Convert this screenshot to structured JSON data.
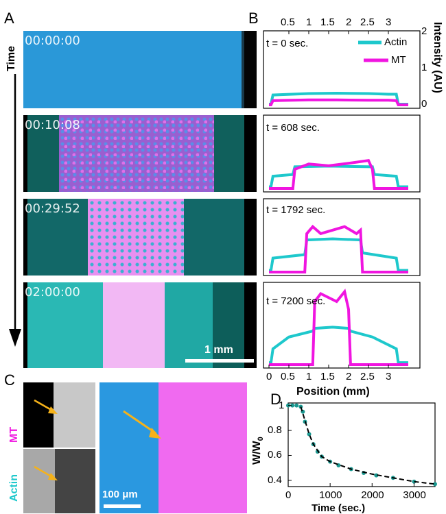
{
  "panels": {
    "A": "A",
    "B": "B",
    "C": "C",
    "D": "D"
  },
  "panel_a": {
    "time_axis_label": "Time",
    "timestamps": [
      "00:00:00",
      "00:10:08",
      "00:29:52",
      "02:00:00"
    ],
    "scalebar_label": "1 mm"
  },
  "panel_b": {
    "top_ticks": [
      "0.5",
      "1",
      "1.5",
      "2",
      "2.5",
      "3"
    ],
    "bottom_ticks": [
      "0",
      "0.5",
      "1",
      "1.5",
      "2",
      "2.5",
      "3"
    ],
    "right_ticks": [
      "2",
      "1",
      "0"
    ],
    "ylabel": "Intensity (AU)",
    "xlabel": "Position (mm)",
    "legend": [
      "Actin",
      "MT"
    ],
    "time_labels": [
      "t = 0 sec.",
      "t = 608 sec.",
      "t = 1792 sec.",
      "t = 7200 sec."
    ]
  },
  "panel_c": {
    "channel_labels": [
      "MT",
      "Actin"
    ],
    "scalebar_label": "100 μm"
  },
  "panel_d": {
    "ylabel_main": "W/W",
    "ylabel_sub": "0",
    "xlabel": "Time (sec.)",
    "yticks": [
      "1",
      "0.8",
      "0.6",
      "0.4"
    ],
    "xticks": [
      "0",
      "1000",
      "2000",
      "3000"
    ]
  },
  "colors": {
    "actin": "#1ec8cc",
    "mt": "#f015e0",
    "arrow": "#f5b21a"
  },
  "chart_data": [
    {
      "type": "line",
      "title": "t = 0 sec.",
      "xlabel": "Position (mm)",
      "ylabel": "Intensity (AU)",
      "xlim": [
        0,
        3.5
      ],
      "ylim": [
        0,
        2
      ],
      "series": [
        {
          "name": "Actin",
          "x": [
            0,
            0.05,
            0.1,
            1.0,
            1.7,
            2.5,
            3.0,
            3.2,
            3.25,
            3.5
          ],
          "y": [
            0.02,
            0.02,
            0.28,
            0.32,
            0.33,
            0.32,
            0.3,
            0.3,
            0.02,
            0.02
          ]
        },
        {
          "name": "MT",
          "x": [
            0,
            0.05,
            0.1,
            1.0,
            1.7,
            2.5,
            3.0,
            3.2,
            3.25,
            3.5
          ],
          "y": [
            0.0,
            0.0,
            0.12,
            0.14,
            0.14,
            0.13,
            0.13,
            0.12,
            0.0,
            0.0
          ]
        }
      ]
    },
    {
      "type": "line",
      "title": "t = 608 sec.",
      "xlabel": "Position (mm)",
      "ylabel": "Intensity (AU)",
      "xlim": [
        0,
        3.5
      ],
      "ylim": [
        0,
        2
      ],
      "series": [
        {
          "name": "Actin",
          "x": [
            0,
            0.05,
            0.1,
            0.6,
            0.65,
            1.5,
            2.6,
            2.65,
            3.2,
            3.25,
            3.5
          ],
          "y": [
            0.05,
            0.05,
            0.35,
            0.4,
            0.62,
            0.64,
            0.62,
            0.4,
            0.35,
            0.05,
            0.05
          ]
        },
        {
          "name": "MT",
          "x": [
            0,
            0.6,
            0.65,
            1.0,
            1.5,
            2.0,
            2.5,
            2.6,
            2.65,
            3.5
          ],
          "y": [
            0.0,
            0.0,
            0.55,
            0.7,
            0.65,
            0.72,
            0.8,
            0.55,
            0.0,
            0.0
          ]
        }
      ]
    },
    {
      "type": "line",
      "title": "t = 1792 sec.",
      "xlabel": "Position (mm)",
      "ylabel": "Intensity (AU)",
      "xlim": [
        0,
        3.5
      ],
      "ylim": [
        0,
        2
      ],
      "series": [
        {
          "name": "Actin",
          "x": [
            0,
            0.05,
            0.1,
            0.9,
            0.95,
            1.6,
            2.3,
            2.35,
            3.2,
            3.25,
            3.5
          ],
          "y": [
            0.05,
            0.05,
            0.4,
            0.5,
            0.92,
            0.95,
            0.92,
            0.55,
            0.4,
            0.05,
            0.05
          ]
        },
        {
          "name": "MT",
          "x": [
            0,
            0.9,
            0.95,
            1.1,
            1.3,
            1.6,
            1.9,
            2.2,
            2.3,
            2.35,
            3.5
          ],
          "y": [
            0.0,
            0.0,
            1.1,
            1.3,
            1.1,
            1.2,
            1.3,
            1.1,
            1.2,
            0.0,
            0.0
          ]
        }
      ]
    },
    {
      "type": "line",
      "title": "t = 7200 sec.",
      "xlabel": "Position (mm)",
      "ylabel": "Intensity (AU)",
      "xlim": [
        0,
        3.5
      ],
      "ylim": [
        0,
        2
      ],
      "series": [
        {
          "name": "Actin",
          "x": [
            0,
            0.05,
            0.1,
            0.5,
            1.1,
            1.15,
            1.6,
            2.0,
            2.05,
            2.6,
            3.2,
            3.25,
            3.5
          ],
          "y": [
            0.05,
            0.05,
            0.4,
            0.7,
            0.85,
            0.92,
            0.95,
            0.92,
            0.85,
            0.7,
            0.4,
            0.05,
            0.05
          ]
        },
        {
          "name": "MT",
          "x": [
            0,
            1.1,
            1.15,
            1.3,
            1.5,
            1.7,
            1.9,
            2.0,
            2.05,
            3.5
          ],
          "y": [
            0.0,
            0.0,
            1.6,
            1.8,
            1.7,
            1.6,
            1.85,
            1.4,
            0.0,
            0.0
          ]
        }
      ]
    },
    {
      "type": "scatter",
      "xlabel": "Time (sec.)",
      "ylabel": "W/W0",
      "xlim": [
        0,
        3500
      ],
      "ylim": [
        0.35,
        1.02
      ],
      "series": [
        {
          "name": "data",
          "x": [
            0,
            100,
            200,
            300,
            350,
            400,
            500,
            600,
            700,
            800,
            1000,
            1200,
            1500,
            1800,
            2100,
            2500,
            3000,
            3500
          ],
          "y": [
            1.0,
            1.0,
            1.0,
            0.99,
            0.95,
            0.87,
            0.77,
            0.69,
            0.63,
            0.59,
            0.55,
            0.52,
            0.49,
            0.46,
            0.44,
            0.42,
            0.39,
            0.37
          ]
        },
        {
          "name": "fit",
          "x": [
            300,
            400,
            500,
            600,
            800,
            1000,
            1500,
            2000,
            2500,
            3000,
            3500
          ],
          "y": [
            0.99,
            0.88,
            0.77,
            0.69,
            0.59,
            0.55,
            0.49,
            0.45,
            0.42,
            0.39,
            0.37
          ]
        }
      ]
    }
  ]
}
